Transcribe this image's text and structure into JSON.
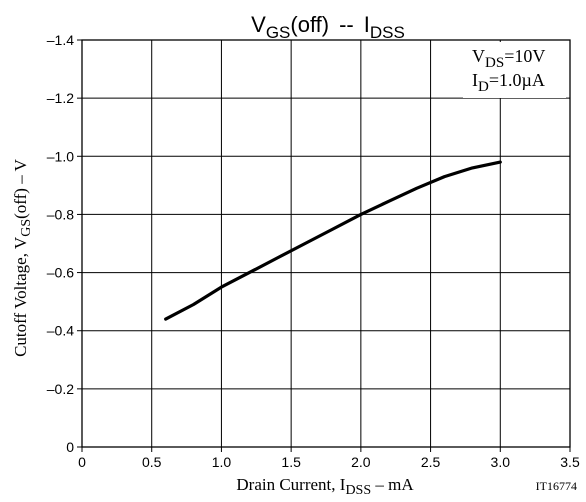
{
  "chart_data": {
    "type": "line",
    "title": {
      "part1_main": "V",
      "part1_sub": "GS",
      "part1_tail": "(off)",
      "separator": "--",
      "part2_main": "I",
      "part2_sub": "DSS"
    },
    "xlabel": {
      "pre": "Drain Current, I",
      "sub": "DSS",
      "post": " – mA"
    },
    "ylabel": {
      "pre": "Cutoff  Voltage, V",
      "sub": "GS",
      "post": "(off)  –  V"
    },
    "xlim": [
      0,
      3.5
    ],
    "ylim": [
      0,
      -1.4
    ],
    "x_ticks": [
      0,
      0.5,
      1.0,
      1.5,
      2.0,
      2.5,
      3.0,
      3.5
    ],
    "x_tick_labels": [
      "0",
      "0.5",
      "1.0",
      "1.5",
      "2.0",
      "2.5",
      "3.0",
      "3.5"
    ],
    "y_ticks": [
      0,
      -0.2,
      -0.4,
      -0.6,
      -0.8,
      -1.0,
      -1.2,
      -1.4
    ],
    "y_tick_labels": [
      "0",
      "–0.2",
      "–0.4",
      "–0.6",
      "–0.8",
      "–1.0",
      "–1.2",
      "–1.4"
    ],
    "grid": true,
    "conditions": {
      "line1_main": "V",
      "line1_sub": "DS",
      "line1_tail": "=10V",
      "line2_main": "I",
      "line2_sub": "D",
      "line2_tail": "=1.0µA"
    },
    "figure_id": "IT16774",
    "series": [
      {
        "x": [
          0.6,
          0.8,
          1.0,
          1.2,
          1.4,
          1.6,
          1.8,
          2.0,
          2.2,
          2.4,
          2.6,
          2.8,
          3.0
        ],
        "y": [
          -0.44,
          -0.49,
          -0.55,
          -0.6,
          -0.65,
          -0.7,
          -0.75,
          -0.8,
          -0.845,
          -0.89,
          -0.93,
          -0.96,
          -0.98
        ]
      }
    ]
  }
}
